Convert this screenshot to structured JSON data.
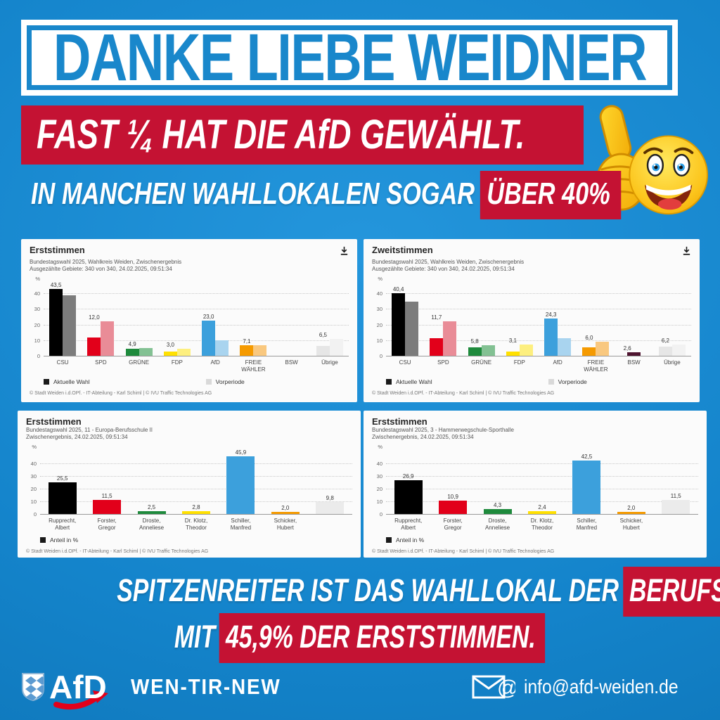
{
  "header": {
    "title": "DANKE LIEBE WEIDNER"
  },
  "claims": {
    "main": "FAST ¼ HAT DIE AfD GEWÄHLT.",
    "sub_prefix": "IN MANCHEN WAHLLOKALEN SOGAR",
    "sub_highlight": "ÜBER 40%",
    "bottom1_prefix": "SPITZENREITER IST DAS WAHLLOKAL DER",
    "bottom1_highlight": "BERUFSCHULE",
    "bottom2_prefix": "MIT",
    "bottom2_highlight": "45,9% DER ERSTSTIMMEN."
  },
  "footer": {
    "org": "AfD",
    "region": "WEN-TIR-NEW",
    "email": "info@afd-weiden.de"
  },
  "colors": {
    "background_blue": "#1484cb",
    "accent_red": "#c41233",
    "title_blue": "#1987cb"
  },
  "icons": {
    "emoji": "thumbs-up-smiley",
    "download": "download-icon",
    "envelope": "email-envelope-icon",
    "shield": "bavaria-shield-icon"
  },
  "chart_data": [
    {
      "type": "bar",
      "title": "Erststimmen",
      "subtitle": "Bundestagswahl 2025, Wahlkreis Weiden, Zwischenergebnis",
      "subtitle2": "Ausgezählte Gebiete: 340 von 340, 24.02.2025, 09:51:34",
      "unit": "%",
      "ylim": [
        0,
        47
      ],
      "yticks": [
        0,
        10,
        20,
        30,
        40
      ],
      "grid": true,
      "legend_position": "bottom",
      "categories": [
        "CSU",
        "SPD",
        "GRÜNE",
        "FDP",
        "AfD",
        "FREIE\nWÄHLER",
        "BSW",
        "Übrige"
      ],
      "series": [
        {
          "name": "Aktuelle Wahl",
          "values": [
            43.5,
            12.0,
            4.9,
            3.0,
            23.0,
            7.1,
            null,
            6.5
          ],
          "labels": [
            "43,5",
            "12,0",
            "4,9",
            "3,0",
            "23,0",
            "7,1",
            "",
            "6,5"
          ],
          "colors": [
            "#000000",
            "#e2001a",
            "#1e8a3c",
            "#ffe000",
            "#3ca0dc",
            "#f59a00",
            "#4e132f",
            "#e6e6e6"
          ]
        },
        {
          "name": "Vorperiode",
          "values": [
            39.0,
            22.4,
            5.2,
            5.1,
            10.3,
            7.2,
            null,
            11.3
          ],
          "colors": [
            "#7c7c7c",
            "#e98c97",
            "#83c193",
            "#fdef7f",
            "#a9d4ef",
            "#f9c87f",
            "#d9b0c0",
            "#f2f2f2"
          ]
        }
      ],
      "legend": [
        {
          "label": "Aktuelle Wahl",
          "color": "#1a1a1a"
        },
        {
          "label": "Vorperiode",
          "color": "#d9d9d9"
        }
      ],
      "copyright": "© Stadt Weiden i.d.OPf. - IT-Abteilung - Karl Schiml | © IVU Traffic Technologies AG"
    },
    {
      "type": "bar",
      "title": "Zweitstimmen",
      "subtitle": "Bundestagswahl 2025, Wahlkreis Weiden, Zwischenergebnis",
      "subtitle2": "Ausgezählte Gebiete: 340 von 340, 24.02.2025, 09:51:34",
      "unit": "%",
      "ylim": [
        0,
        47
      ],
      "yticks": [
        0,
        10,
        20,
        30,
        40
      ],
      "grid": true,
      "legend_position": "bottom",
      "categories": [
        "CSU",
        "SPD",
        "GRÜNE",
        "FDP",
        "AfD",
        "FREIE\nWÄHLER",
        "BSW",
        "Übrige"
      ],
      "series": [
        {
          "name": "Aktuelle Wahl",
          "values": [
            40.4,
            11.7,
            5.8,
            3.1,
            24.3,
            6.0,
            2.6,
            6.2
          ],
          "labels": [
            "40,4",
            "11,7",
            "5,8",
            "3,1",
            "24,3",
            "6,0",
            "2,6",
            "6,2"
          ],
          "colors": [
            "#000000",
            "#e2001a",
            "#1e8a3c",
            "#ffe000",
            "#3ca0dc",
            "#f59a00",
            "#4e132f",
            "#e6e6e6"
          ]
        },
        {
          "name": "Vorperiode",
          "values": [
            35.0,
            22.4,
            7.2,
            7.5,
            11.5,
            9.5,
            null,
            7.5
          ],
          "colors": [
            "#7c7c7c",
            "#e98c97",
            "#83c193",
            "#fdef7f",
            "#a9d4ef",
            "#f9c87f",
            "#d9b0c0",
            "#f2f2f2"
          ]
        }
      ],
      "legend": [
        {
          "label": "Aktuelle Wahl",
          "color": "#1a1a1a"
        },
        {
          "label": "Vorperiode",
          "color": "#d9d9d9"
        }
      ],
      "copyright": "© Stadt Weiden i.d.OPf. - IT-Abteilung - Karl Schiml | © IVU Traffic Technologies AG"
    },
    {
      "type": "bar",
      "title": "Erststimmen",
      "subtitle": "Bundestagswahl 2025, 11 - Europa-Berufsschule II",
      "subtitle2": "Zwischenergebnis, 24.02.2025, 09:51:34",
      "unit": "%",
      "ylim": [
        0,
        50
      ],
      "yticks": [
        0,
        10,
        20,
        30,
        40
      ],
      "grid": true,
      "legend_position": "bottom",
      "categories": [
        "Rupprecht,\nAlbert",
        "Forster,\nGregor",
        "Droste,\nAnneliese",
        "Dr. Klotz,\nTheodor",
        "Schiller,\nManfred",
        "Schicker,\nHubert",
        ""
      ],
      "series": [
        {
          "name": "Anteil in %",
          "values": [
            25.5,
            11.5,
            2.5,
            2.8,
            45.9,
            2.0,
            9.8
          ],
          "labels": [
            "25,5",
            "11,5",
            "2,5",
            "2,8",
            "45,9",
            "2,0",
            "9,8"
          ],
          "colors": [
            "#000000",
            "#e2001a",
            "#1e8a3c",
            "#ffe000",
            "#3ca0dc",
            "#f59a00",
            "#ebebeb"
          ]
        }
      ],
      "legend": [
        {
          "label": "Anteil in %",
          "color": "#1a1a1a"
        }
      ],
      "copyright": "© Stadt Weiden i.d.OPf. - IT-Abteilung - Karl Schiml | © IVU Traffic Technologies AG"
    },
    {
      "type": "bar",
      "title": "Erststimmen",
      "subtitle": "Bundestagswahl 2025, 3 - Hammerwegschule-Sporthalle",
      "subtitle2": "Zwischenergebnis, 24.02.2025, 09:51:34",
      "unit": "%",
      "ylim": [
        0,
        50
      ],
      "yticks": [
        0,
        10,
        20,
        30,
        40
      ],
      "grid": true,
      "legend_position": "bottom",
      "categories": [
        "Rupprecht,\nAlbert",
        "Forster,\nGregor",
        "Droste,\nAnneliese",
        "Dr. Klotz,\nTheodor",
        "Schiller,\nManfred",
        "Schicker,\nHubert",
        ""
      ],
      "series": [
        {
          "name": "Anteil in %",
          "values": [
            26.9,
            10.9,
            4.3,
            2.4,
            42.5,
            2.0,
            11.5
          ],
          "labels": [
            "26,9",
            "10,9",
            "4,3",
            "2,4",
            "42,5",
            "2,0",
            "11,5"
          ],
          "colors": [
            "#000000",
            "#e2001a",
            "#1e8a3c",
            "#ffe000",
            "#3ca0dc",
            "#f59a00",
            "#ebebeb"
          ]
        }
      ],
      "legend": [
        {
          "label": "Anteil in %",
          "color": "#1a1a1a"
        }
      ],
      "copyright": "© Stadt Weiden i.d.OPf. - IT-Abteilung - Karl Schiml | © IVU Traffic Technologies AG"
    }
  ]
}
